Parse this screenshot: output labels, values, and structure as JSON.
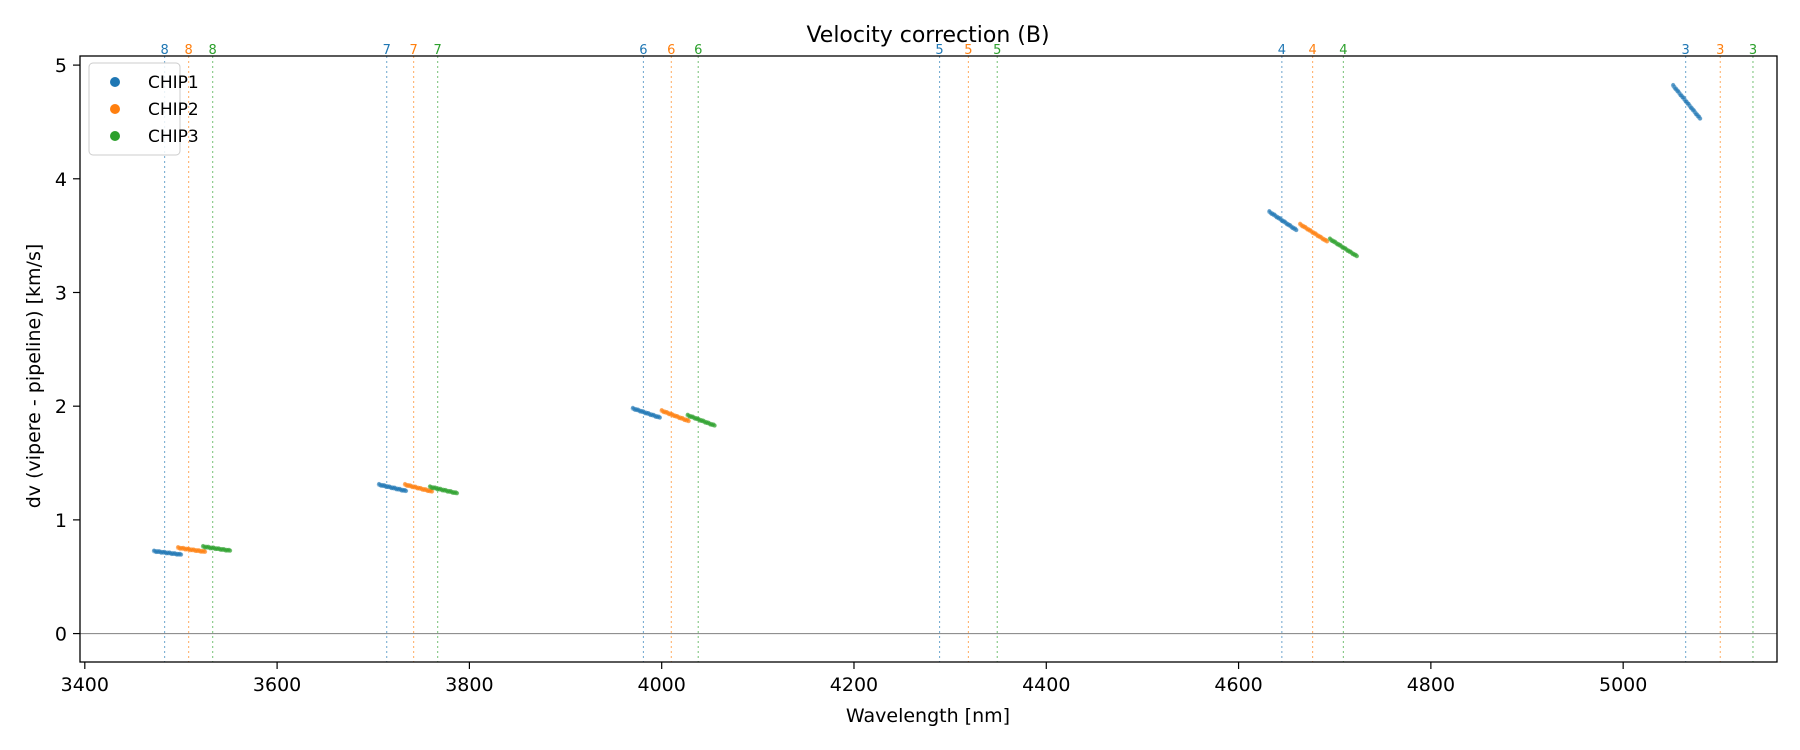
{
  "chart_data": {
    "type": "scatter",
    "title": "Velocity correction (B)",
    "xlabel": "Wavelength [nm]",
    "ylabel": "dv (vipere - pipeline) [km/s]",
    "xlim": [
      3395,
      5160
    ],
    "ylim": [
      -0.25,
      5.08
    ],
    "xticks": [
      3400,
      3600,
      3800,
      4000,
      4200,
      4400,
      4600,
      4800,
      5000
    ],
    "yticks": [
      0,
      1,
      2,
      3,
      4,
      5
    ],
    "grid": false,
    "legend_position": "top-left",
    "zero_line": 0,
    "series": [
      {
        "name": "CHIP1",
        "color": "#1f77b4",
        "segments": [
          {
            "order": "8",
            "x": [
              3472,
              3500
            ],
            "y": [
              0.725,
              0.695
            ]
          },
          {
            "order": "7",
            "x": [
              3706,
              3734
            ],
            "y": [
              1.31,
              1.255
            ]
          },
          {
            "order": "6",
            "x": [
              3970,
              3998
            ],
            "y": [
              1.98,
              1.9
            ]
          },
          {
            "order": "4",
            "x": [
              4632,
              4660
            ],
            "y": [
              3.71,
              3.55
            ]
          },
          {
            "order": "3",
            "x": [
              5052,
              5080
            ],
            "y": [
              4.82,
              4.53
            ]
          }
        ]
      },
      {
        "name": "CHIP2",
        "color": "#ff7f0e",
        "segments": [
          {
            "order": "8",
            "x": [
              3497,
              3525
            ],
            "y": [
              0.755,
              0.72
            ]
          },
          {
            "order": "7",
            "x": [
              3733,
              3761
            ],
            "y": [
              1.31,
              1.25
            ]
          },
          {
            "order": "6",
            "x": [
              4000,
              4028
            ],
            "y": [
              1.96,
              1.87
            ]
          },
          {
            "order": "4",
            "x": [
              4664,
              4692
            ],
            "y": [
              3.6,
              3.45
            ]
          }
        ]
      },
      {
        "name": "CHIP3",
        "color": "#2ca02c",
        "segments": [
          {
            "order": "8",
            "x": [
              3523,
              3551
            ],
            "y": [
              0.765,
              0.73
            ]
          },
          {
            "order": "7",
            "x": [
              3759,
              3787
            ],
            "y": [
              1.29,
              1.235
            ]
          },
          {
            "order": "6",
            "x": [
              4027,
              4055
            ],
            "y": [
              1.92,
              1.83
            ]
          },
          {
            "order": "4",
            "x": [
              4695,
              4723
            ],
            "y": [
              3.47,
              3.32
            ]
          }
        ]
      }
    ],
    "order_markers": [
      {
        "chip": "CHIP1",
        "color": "#1f77b4",
        "orders": [
          {
            "label": "8",
            "x": 3483
          },
          {
            "label": "7",
            "x": 3714
          },
          {
            "label": "6",
            "x": 3981
          },
          {
            "label": "5",
            "x": 4289
          },
          {
            "label": "4",
            "x": 4645
          },
          {
            "label": "3",
            "x": 5065
          }
        ]
      },
      {
        "chip": "CHIP2",
        "color": "#ff7f0e",
        "orders": [
          {
            "label": "8",
            "x": 3508
          },
          {
            "label": "7",
            "x": 3742
          },
          {
            "label": "6",
            "x": 4010
          },
          {
            "label": "5",
            "x": 4319
          },
          {
            "label": "4",
            "x": 4677
          },
          {
            "label": "3",
            "x": 5101
          }
        ]
      },
      {
        "chip": "CHIP3",
        "color": "#2ca02c",
        "orders": [
          {
            "label": "8",
            "x": 3533
          },
          {
            "label": "7",
            "x": 3767
          },
          {
            "label": "6",
            "x": 4038
          },
          {
            "label": "5",
            "x": 4349
          },
          {
            "label": "4",
            "x": 4709
          },
          {
            "label": "3",
            "x": 5135
          }
        ]
      }
    ]
  }
}
